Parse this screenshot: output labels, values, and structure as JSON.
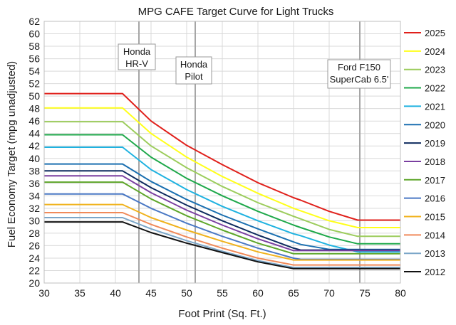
{
  "chart_data": {
    "type": "line",
    "title": "MPG CAFE Target Curve for Light Trucks",
    "xlabel": "Foot Print (Sq. Ft.)",
    "ylabel": "Fuel Economy Target (mpg unadjusted)",
    "xlim": [
      30,
      80
    ],
    "ylim": [
      20,
      62
    ],
    "xticks": [
      30,
      35,
      40,
      45,
      50,
      55,
      60,
      65,
      70,
      75,
      80
    ],
    "yticks": [
      20,
      22,
      24,
      26,
      28,
      30,
      32,
      34,
      36,
      38,
      40,
      42,
      44,
      46,
      48,
      50,
      52,
      54,
      56,
      58,
      60,
      62
    ],
    "x": [
      30,
      41,
      45,
      50,
      55,
      60,
      65,
      66,
      70,
      74,
      75,
      80
    ],
    "grid": true,
    "legend_position": "right",
    "series": [
      {
        "name": "2025",
        "color": "#e0201b",
        "values": [
          50.4,
          50.4,
          46.0,
          42.1,
          39.0,
          36.1,
          33.7,
          33.3,
          31.5,
          30.1,
          30.1,
          30.1
        ]
      },
      {
        "name": "2024",
        "color": "#ffff1a",
        "values": [
          48.1,
          48.1,
          44.0,
          40.2,
          37.1,
          34.4,
          32.0,
          31.6,
          30.0,
          28.9,
          28.9,
          28.9
        ]
      },
      {
        "name": "2023",
        "color": "#9ccc5c",
        "values": [
          45.9,
          45.9,
          42.0,
          38.5,
          35.5,
          32.9,
          30.7,
          30.3,
          28.6,
          27.5,
          27.5,
          27.5
        ]
      },
      {
        "name": "2022",
        "color": "#1ea84a",
        "values": [
          43.8,
          43.8,
          40.2,
          36.8,
          34.0,
          31.5,
          29.3,
          28.9,
          27.4,
          26.3,
          26.3,
          26.3
        ]
      },
      {
        "name": "2021",
        "color": "#1fb2e0",
        "values": [
          41.8,
          41.8,
          38.2,
          35.0,
          32.3,
          30.0,
          27.9,
          27.6,
          26.1,
          25.0,
          25.0,
          25.0
        ]
      },
      {
        "name": "2020",
        "color": "#1a6fb0",
        "values": [
          39.1,
          39.1,
          36.3,
          33.4,
          30.9,
          28.7,
          26.6,
          26.2,
          25.4,
          25.4,
          25.4,
          25.4
        ]
      },
      {
        "name": "2019",
        "color": "#0d2a5e",
        "values": [
          38.0,
          38.0,
          35.3,
          32.5,
          30.0,
          27.7,
          25.6,
          25.3,
          25.3,
          25.3,
          25.3,
          25.3
        ]
      },
      {
        "name": "2018",
        "color": "#7a3fa0",
        "values": [
          37.2,
          37.2,
          34.5,
          31.7,
          29.3,
          27.1,
          25.2,
          25.2,
          25.2,
          25.2,
          25.2,
          25.2
        ]
      },
      {
        "name": "2017",
        "color": "#5ea62a",
        "values": [
          36.2,
          36.2,
          33.5,
          30.8,
          28.5,
          26.4,
          24.7,
          24.7,
          24.7,
          24.7,
          24.7,
          24.7
        ]
      },
      {
        "name": "2016",
        "color": "#4a78c4",
        "values": [
          34.3,
          34.3,
          32.0,
          29.6,
          27.5,
          25.6,
          24.0,
          23.8,
          23.8,
          23.8,
          23.8,
          23.8
        ]
      },
      {
        "name": "2015",
        "color": "#f0b21c",
        "values": [
          32.6,
          32.6,
          30.5,
          28.5,
          26.7,
          25.0,
          23.7,
          23.7,
          23.7,
          23.7,
          23.7,
          23.7
        ]
      },
      {
        "name": "2014",
        "color": "#f08a5a",
        "values": [
          31.3,
          31.3,
          29.4,
          27.4,
          25.6,
          24.0,
          22.9,
          22.9,
          22.9,
          22.9,
          22.9,
          22.9
        ]
      },
      {
        "name": "2013",
        "color": "#7ba6c8",
        "values": [
          30.5,
          30.5,
          28.7,
          26.8,
          25.1,
          23.6,
          22.5,
          22.5,
          22.5,
          22.5,
          22.5,
          22.5
        ]
      },
      {
        "name": "2012",
        "color": "#111111",
        "values": [
          29.8,
          29.8,
          28.1,
          26.4,
          24.9,
          23.4,
          22.3,
          22.3,
          22.3,
          22.3,
          22.3,
          22.3
        ]
      }
    ],
    "annotations": [
      {
        "x": 43.3,
        "lines": [
          "Honda",
          "HR-V"
        ]
      },
      {
        "x": 51.2,
        "lines": [
          "Honda",
          "Pilot"
        ]
      },
      {
        "x": 74.3,
        "lines": [
          "Ford F150",
          "SuperCab 6.5'"
        ]
      }
    ]
  }
}
